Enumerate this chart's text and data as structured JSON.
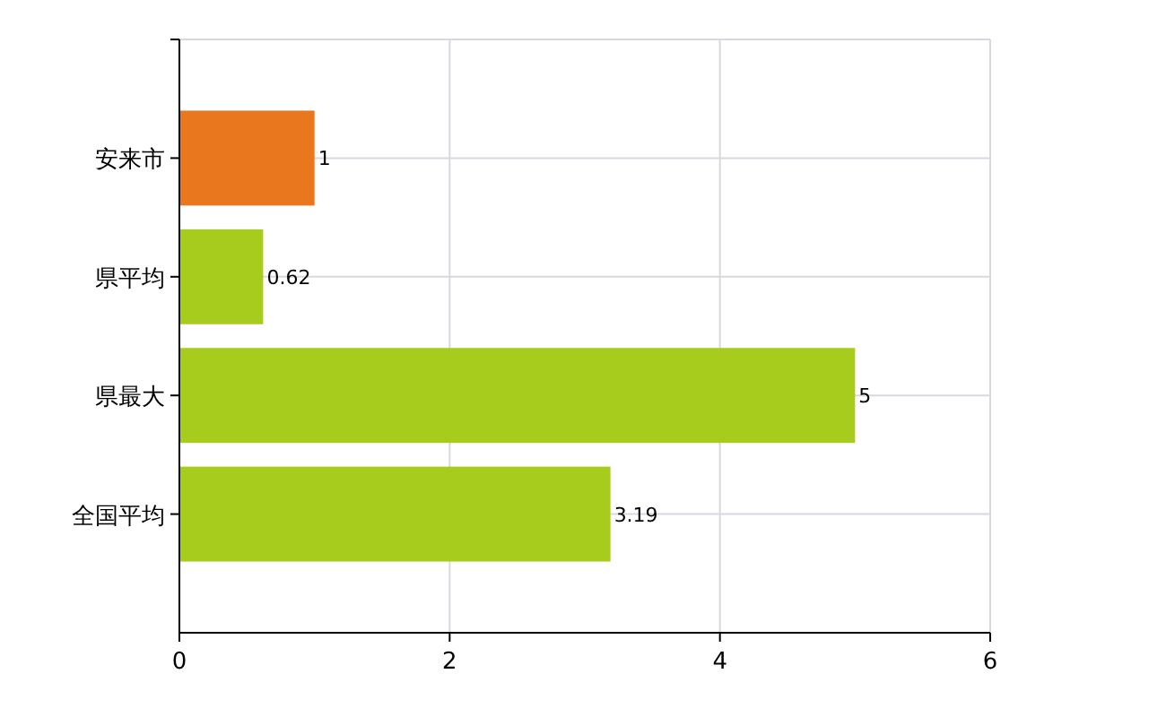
{
  "chart_data": {
    "type": "bar",
    "orientation": "horizontal",
    "categories": [
      "安来市",
      "県平均",
      "県最大",
      "全国平均"
    ],
    "values": [
      1,
      0.62,
      5,
      3.19
    ],
    "colors": [
      "#e8771e",
      "#a8cc1e",
      "#a8cc1e",
      "#a8cc1e"
    ],
    "xlim": [
      0,
      6
    ],
    "xticks": [
      0,
      2,
      4,
      6
    ],
    "grid": true,
    "data_labels": true
  }
}
